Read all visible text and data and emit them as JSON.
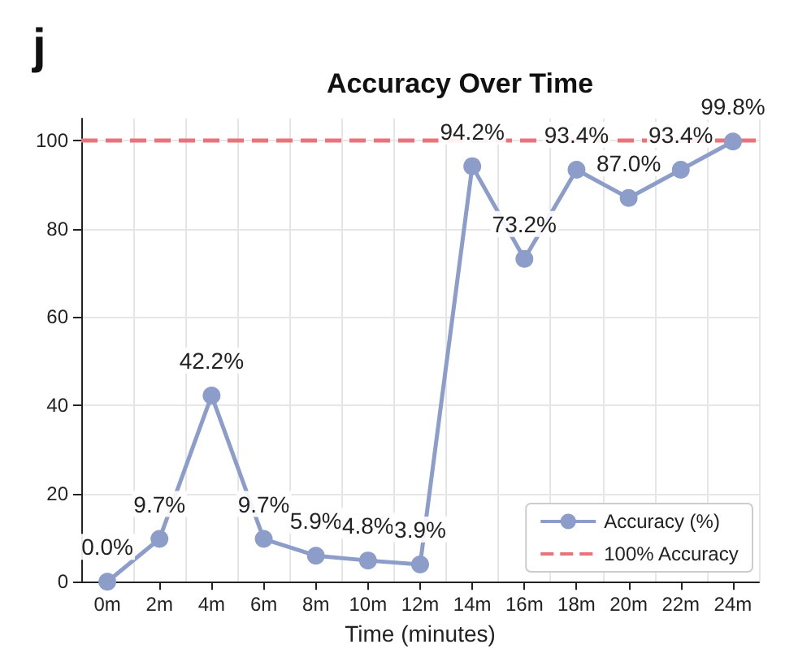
{
  "chart_data": {
    "type": "line",
    "title": "Accuracy Over Time",
    "xlabel": "Time (minutes)",
    "annotations": [
      "j"
    ],
    "categories": [
      "0m",
      "2m",
      "4m",
      "6m",
      "8m",
      "10m",
      "12m",
      "14m",
      "16m",
      "18m",
      "20m",
      "22m",
      "24m"
    ],
    "series": [
      {
        "name": "Accuracy (%)",
        "color": "#8c9dc9",
        "values": [
          0.0,
          9.7,
          42.2,
          9.7,
          5.9,
          4.8,
          3.9,
          94.2,
          73.2,
          93.4,
          87.0,
          93.4,
          99.8
        ],
        "value_labels": [
          "0.0%",
          "9.7%",
          "42.2%",
          "9.7%",
          "5.9%",
          "4.8%",
          "3.9%",
          "94.2%",
          "73.2%",
          "93.4%",
          "87.0%",
          "93.4%",
          "99.8%"
        ]
      }
    ],
    "ref_lines": [
      {
        "axis": "y",
        "value": 100,
        "label": "100% Accuracy",
        "color": "#e8737a",
        "line_style": "dashed"
      }
    ],
    "ylim": [
      0,
      105
    ],
    "yticks": [
      0,
      20,
      40,
      60,
      80,
      100
    ],
    "grid": true,
    "legend": "bottom right",
    "marker": "circle",
    "line_style": "solid"
  }
}
